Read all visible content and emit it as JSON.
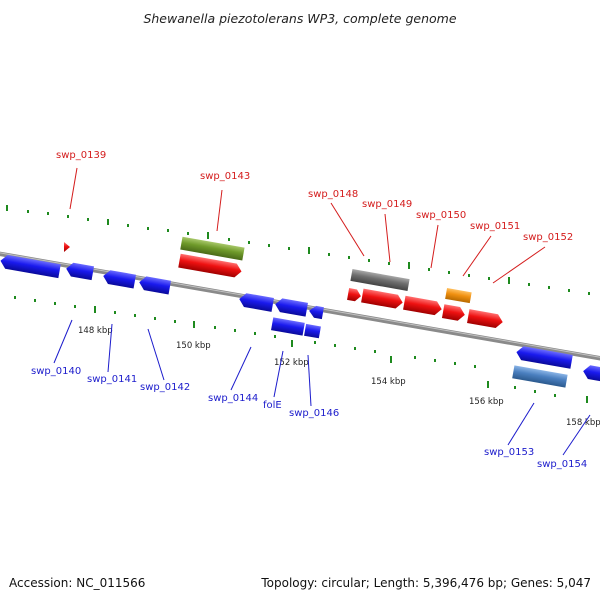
{
  "title": "Shewanella piezotolerans WP3, complete genome",
  "footer": {
    "accession": "Accession: NC_011566",
    "summary": "Topology: circular; Length: 5,396,476 bp; Genes: 5,047"
  },
  "ruler": [
    "148 kbp",
    "150 kbp",
    "152 kbp",
    "154 kbp",
    "156 kbp",
    "158 kbp"
  ],
  "genes_top": [
    "swp_0139",
    "swp_0143",
    "swp_0148",
    "swp_0149",
    "swp_0150",
    "swp_0151",
    "swp_0152"
  ],
  "genes_bottom": [
    "swp_0140",
    "swp_0141",
    "swp_0142",
    "swp_0144",
    "folE",
    "swp_0146",
    "swp_0153",
    "swp_0154"
  ],
  "colors": {
    "blue": "#1a1aee",
    "red": "#ee1111",
    "olive": "#6f9a2a",
    "gray": "#6e6e6e",
    "orange": "#f09010",
    "steel": "#4a7fbf",
    "tick": "#1e8a1e",
    "label_red": "#d41c1c",
    "label_blue": "#1c1ccc"
  }
}
